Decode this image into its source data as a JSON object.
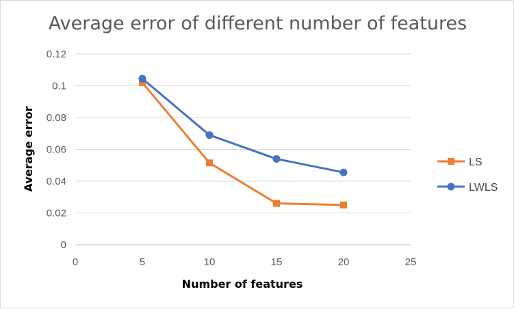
{
  "chart_data": {
    "type": "line",
    "title": "Average error of different number of features",
    "xlabel": "Number of features",
    "ylabel": "Average error",
    "xlim": [
      0,
      25
    ],
    "ylim": [
      0,
      0.12
    ],
    "x_ticks": [
      "0",
      "5",
      "10",
      "15",
      "20",
      "25"
    ],
    "y_ticks": [
      "0",
      "0.02",
      "0.04",
      "0.06",
      "0.08",
      "0.1",
      "0.12"
    ],
    "x": [
      5,
      10,
      15,
      20
    ],
    "series": [
      {
        "name": "LS",
        "values": [
          0.102,
          0.0515,
          0.026,
          0.025
        ],
        "color": "#ED7D31",
        "marker": "square"
      },
      {
        "name": "LWLS",
        "values": [
          0.1045,
          0.069,
          0.054,
          0.0455
        ],
        "color": "#4472C4",
        "marker": "circle"
      }
    ],
    "grid": true,
    "legend_position": "right"
  }
}
